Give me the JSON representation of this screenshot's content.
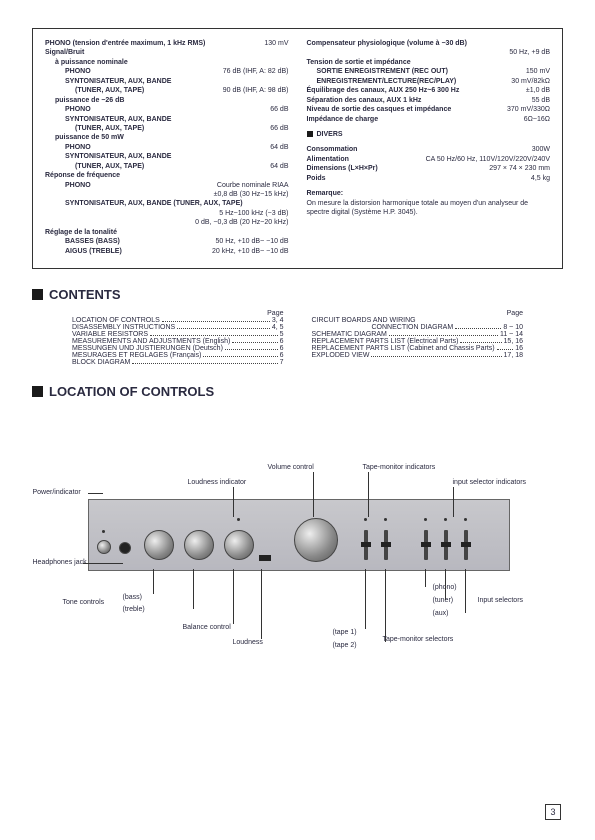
{
  "specs": {
    "left": [
      {
        "type": "row",
        "bold": true,
        "label": "PHONO (tension d'entrée maximum, 1 kHz RMS)",
        "value": "130 mV"
      },
      {
        "type": "text",
        "bold": true,
        "label": "Signal/Bruit"
      },
      {
        "type": "text",
        "ind": 1,
        "bold": true,
        "label": "à puissance nominale"
      },
      {
        "type": "row",
        "ind": 2,
        "bold": true,
        "label": "PHONO",
        "value": "76 dB (IHF, A: 82 dB)"
      },
      {
        "type": "text",
        "ind": 2,
        "bold": true,
        "label": "SYNTONISATEUR, AUX, BANDE"
      },
      {
        "type": "row",
        "ind": 3,
        "bold": true,
        "label": "(TUNER, AUX, TAPE)",
        "value": "90 dB (IHF, A: 98 dB)"
      },
      {
        "type": "text",
        "ind": 1,
        "bold": true,
        "label": "puissance de −26 dB"
      },
      {
        "type": "row",
        "ind": 2,
        "bold": true,
        "label": "PHONO",
        "value": "66 dB"
      },
      {
        "type": "text",
        "ind": 2,
        "bold": true,
        "label": "SYNTONISATEUR, AUX, BANDE"
      },
      {
        "type": "row",
        "ind": 3,
        "bold": true,
        "label": "(TUNER, AUX, TAPE)",
        "value": "66 dB"
      },
      {
        "type": "text",
        "ind": 1,
        "bold": true,
        "label": "puissance de 50 mW"
      },
      {
        "type": "row",
        "ind": 2,
        "bold": true,
        "label": "PHONO",
        "value": "64 dB"
      },
      {
        "type": "text",
        "ind": 2,
        "bold": true,
        "label": "SYNTONISATEUR, AUX, BANDE"
      },
      {
        "type": "row",
        "ind": 3,
        "bold": true,
        "label": "(TUNER, AUX, TAPE)",
        "value": "64 dB"
      },
      {
        "type": "text",
        "bold": true,
        "label": "Réponse de fréquence"
      },
      {
        "type": "row",
        "ind": 2,
        "bold": true,
        "label": "PHONO",
        "value": "Courbe nominale RIAA"
      },
      {
        "type": "row",
        "ind": 2,
        "label": "",
        "value": "±0,8 dB (30 Hz~15 kHz)"
      },
      {
        "type": "text",
        "ind": 2,
        "bold": true,
        "label": "SYNTONISATEUR, AUX, BANDE (TUNER, AUX, TAPE)"
      },
      {
        "type": "row",
        "ind": 2,
        "label": "",
        "value": "5 Hz~100 kHz (−3 dB)"
      },
      {
        "type": "row",
        "ind": 2,
        "label": "",
        "value": "0 dB, −0,3 dB (20 Hz~20 kHz)"
      },
      {
        "type": "text",
        "bold": true,
        "label": "Réglage de la tonalité"
      },
      {
        "type": "row",
        "ind": 2,
        "bold": true,
        "label": "BASSES (BASS)",
        "value": "50 Hz, +10 dB~ −10 dB"
      },
      {
        "type": "row",
        "ind": 2,
        "bold": true,
        "label": "AIGUS (TREBLE)",
        "value": "20 kHz, +10 dB~ −10 dB"
      }
    ],
    "right": [
      {
        "type": "text",
        "bold": true,
        "label": "Compensateur physiologique (volume à −30 dB)"
      },
      {
        "type": "row",
        "label": "",
        "value": "50 Hz, +9 dB"
      },
      {
        "type": "text",
        "bold": true,
        "label": "Tension de sortie et impédance"
      },
      {
        "type": "row",
        "ind": 1,
        "bold": true,
        "label": "SORTIE ENREGISTREMENT (REC OUT)",
        "value": "150 mV"
      },
      {
        "type": "row",
        "ind": 1,
        "bold": true,
        "label": "ENREGISTREMENT/LECTURE(REC/PLAY)",
        "value": "30 mV/82kΩ"
      },
      {
        "type": "row",
        "bold": true,
        "label": "Équilibrage des canaux, AUX 250 Hz~6 300 Hz",
        "value": "±1,0 dB"
      },
      {
        "type": "row",
        "bold": true,
        "label": "Séparation des canaux, AUX 1 kHz",
        "value": "55 dB"
      },
      {
        "type": "row",
        "bold": true,
        "label": "Niveau de sortie des casques et impédance",
        "value": "370 mV/330Ω"
      },
      {
        "type": "row",
        "bold": true,
        "label": "Impédance de charge",
        "value": "6Ω~16Ω"
      },
      {
        "type": "gap"
      },
      {
        "type": "divers",
        "label": "DIVERS"
      },
      {
        "type": "gap"
      },
      {
        "type": "row",
        "bold": true,
        "label": "Consommation",
        "value": "300W"
      },
      {
        "type": "row",
        "bold": true,
        "label": "Alimentation",
        "value": "CA 50 Hz/60 Hz, 110V/120V/220V/240V"
      },
      {
        "type": "row",
        "bold": true,
        "label": "Dimensions (L×H×Pr)",
        "value": "297 × 74 × 230 mm"
      },
      {
        "type": "row",
        "bold": true,
        "label": "Poids",
        "value": "4,5 kg"
      },
      {
        "type": "gap"
      },
      {
        "type": "text",
        "bold": true,
        "label": "Remarque:"
      },
      {
        "type": "text",
        "label": "On mesure la distorsion harmonique totale au moyen d'un analyseur de spectre digital (Système H.P. 3045)."
      }
    ]
  },
  "headings": {
    "contents": "CONTENTS",
    "location": "LOCATION OF CONTROLS",
    "page_label": "Page"
  },
  "contents": {
    "left": [
      {
        "label": "LOCATION OF CONTROLS",
        "page": "3, 4"
      },
      {
        "label": "DISASSEMBLY INSTRUCTIONS",
        "page": "4, 5"
      },
      {
        "label": "VARIABLE RESISTORS",
        "page": "5"
      },
      {
        "label": "MEASUREMENTS AND ADJUSTMENTS (English)",
        "page": "6"
      },
      {
        "label": "MESSUNGEN UND JUSTIERUNGEN (Deutsch)",
        "page": "6"
      },
      {
        "label": "MESURAGES ET REGLAGES (Français)",
        "page": "6"
      },
      {
        "label": "BLOCK DIAGRAM",
        "page": "7"
      }
    ],
    "right": [
      {
        "label": "CIRCUIT BOARDS AND WIRING",
        "page": ""
      },
      {
        "label": "CONNECTION DIAGRAM",
        "page": "8 ~ 10",
        "ind": true
      },
      {
        "label": "SCHEMATIC DIAGRAM",
        "page": "11 ~ 14"
      },
      {
        "label": "REPLACEMENT PARTS LIST (Electrical Parts)",
        "page": "15, 16"
      },
      {
        "label": "REPLACEMENT PARTS LIST (Cabinet and Chassis Parts)",
        "page": "16"
      },
      {
        "label": "EXPLODED VIEW",
        "page": "17, 18"
      }
    ]
  },
  "amp_labels": {
    "power": "Power/indicator",
    "headphones": "Headphones jack",
    "tone": "Tone controls",
    "bass": "(bass)",
    "treble": "(treble)",
    "loudness_ind": "Loudness indicator",
    "balance": "Balance control",
    "loudness": "Loudness",
    "volume": "Volume control",
    "tape_ind": "Tape-monitor indicators",
    "input_ind": "input selector indicators",
    "phono": "(phono)",
    "tuner": "(tuner)",
    "aux": "(aux)",
    "input_sel": "Input selectors",
    "tape1": "(tape 1)",
    "tape2": "(tape 2)",
    "tape_sel": "Tape-monitor selectors"
  },
  "page_number": "3"
}
